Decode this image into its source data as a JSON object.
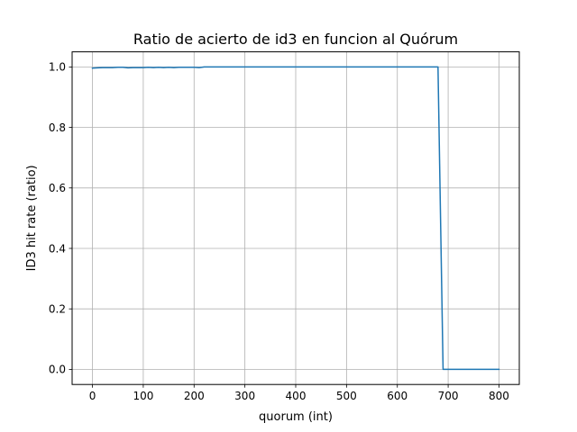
{
  "chart_data": {
    "type": "line",
    "title": "Ratio de acierto de id3 en funcion al Quórum",
    "xlabel": "quorum (int)",
    "ylabel": "ID3 hit rate (ratio)",
    "xlim": [
      -40,
      840
    ],
    "ylim": [
      -0.05,
      1.05
    ],
    "xticks": [
      0,
      100,
      200,
      300,
      400,
      500,
      600,
      700,
      800
    ],
    "yticks": [
      0.0,
      0.2,
      0.4,
      0.6,
      0.8,
      1.0
    ],
    "xtick_labels": [
      "0",
      "100",
      "200",
      "300",
      "400",
      "500",
      "600",
      "700",
      "800"
    ],
    "ytick_labels": [
      "0.0",
      "0.2",
      "0.4",
      "0.6",
      "0.8",
      "1.0"
    ],
    "grid": true,
    "series": [
      {
        "color": "#1f77b4",
        "x": [
          0,
          10,
          20,
          30,
          40,
          50,
          60,
          70,
          80,
          90,
          100,
          110,
          120,
          130,
          140,
          150,
          160,
          170,
          180,
          190,
          200,
          210,
          220,
          230,
          240,
          250,
          260,
          270,
          280,
          290,
          300,
          350,
          400,
          450,
          500,
          550,
          600,
          650,
          680,
          690,
          700,
          710,
          720,
          730,
          740,
          750,
          760,
          770,
          780,
          790,
          800
        ],
        "y": [
          0.996,
          0.997,
          0.998,
          0.998,
          0.998,
          0.999,
          0.999,
          0.997,
          0.998,
          0.998,
          0.998,
          0.999,
          0.998,
          0.999,
          0.998,
          0.999,
          0.998,
          0.999,
          0.999,
          0.999,
          0.999,
          0.998,
          1.0,
          1.0,
          1.0,
          1.0,
          1.0,
          1.0,
          1.0,
          1.0,
          1.0,
          1.0,
          1.0,
          1.0,
          1.0,
          1.0,
          1.0,
          1.0,
          1.0,
          0.0,
          0.0,
          0.0,
          0.0,
          0.0,
          0.0,
          0.0,
          0.0,
          0.0,
          0.0,
          0.0,
          0.0
        ]
      }
    ]
  }
}
